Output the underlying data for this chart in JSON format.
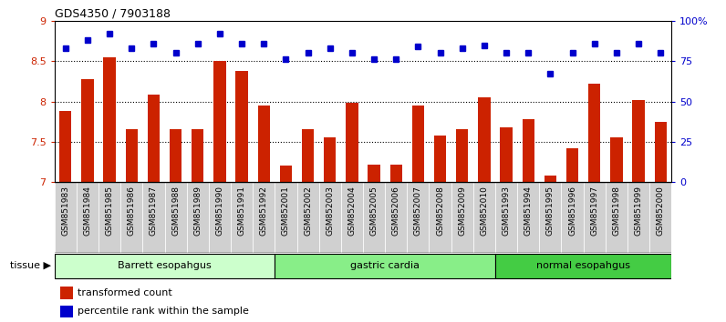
{
  "title": "GDS4350 / 7903188",
  "samples": [
    "GSM851983",
    "GSM851984",
    "GSM851985",
    "GSM851986",
    "GSM851987",
    "GSM851988",
    "GSM851989",
    "GSM851990",
    "GSM851991",
    "GSM851992",
    "GSM852001",
    "GSM852002",
    "GSM852003",
    "GSM852004",
    "GSM852005",
    "GSM852006",
    "GSM852007",
    "GSM852008",
    "GSM852009",
    "GSM852010",
    "GSM851993",
    "GSM851994",
    "GSM851995",
    "GSM851996",
    "GSM851997",
    "GSM851998",
    "GSM851999",
    "GSM852000"
  ],
  "bar_values": [
    7.88,
    8.28,
    8.55,
    7.65,
    8.08,
    7.65,
    7.65,
    8.5,
    8.38,
    7.95,
    7.2,
    7.65,
    7.55,
    7.98,
    7.22,
    7.22,
    7.95,
    7.58,
    7.65,
    8.05,
    7.68,
    7.78,
    7.08,
    7.42,
    8.22,
    7.55,
    8.02,
    7.75
  ],
  "blue_values": [
    83,
    88,
    92,
    83,
    86,
    80,
    86,
    92,
    86,
    86,
    76,
    80,
    83,
    80,
    76,
    76,
    84,
    80,
    83,
    85,
    80,
    80,
    67,
    80,
    86,
    80,
    86,
    80
  ],
  "groups": [
    {
      "label": "Barrett esopahgus",
      "start": 0,
      "end": 9,
      "color": "#ccffcc"
    },
    {
      "label": "gastric cardia",
      "start": 10,
      "end": 19,
      "color": "#88ee88"
    },
    {
      "label": "normal esopahgus",
      "start": 20,
      "end": 27,
      "color": "#44cc44"
    }
  ],
  "bar_color": "#cc2200",
  "blue_color": "#0000cc",
  "ylim_left": [
    7.0,
    9.0
  ],
  "ylim_right": [
    0,
    100
  ],
  "yticks_left": [
    7.0,
    7.5,
    8.0,
    8.5,
    9.0
  ],
  "ytick_labels_left": [
    "7",
    "7.5",
    "8",
    "8.5",
    "9"
  ],
  "yticks_right": [
    0,
    25,
    50,
    75,
    100
  ],
  "ytick_labels_right": [
    "0",
    "25",
    "50",
    "75",
    "100%"
  ],
  "grid_lines": [
    7.5,
    8.0,
    8.5
  ],
  "plot_bg": "#ffffff",
  "fig_bg": "#ffffff",
  "xtick_bg": "#d0d0d0"
}
